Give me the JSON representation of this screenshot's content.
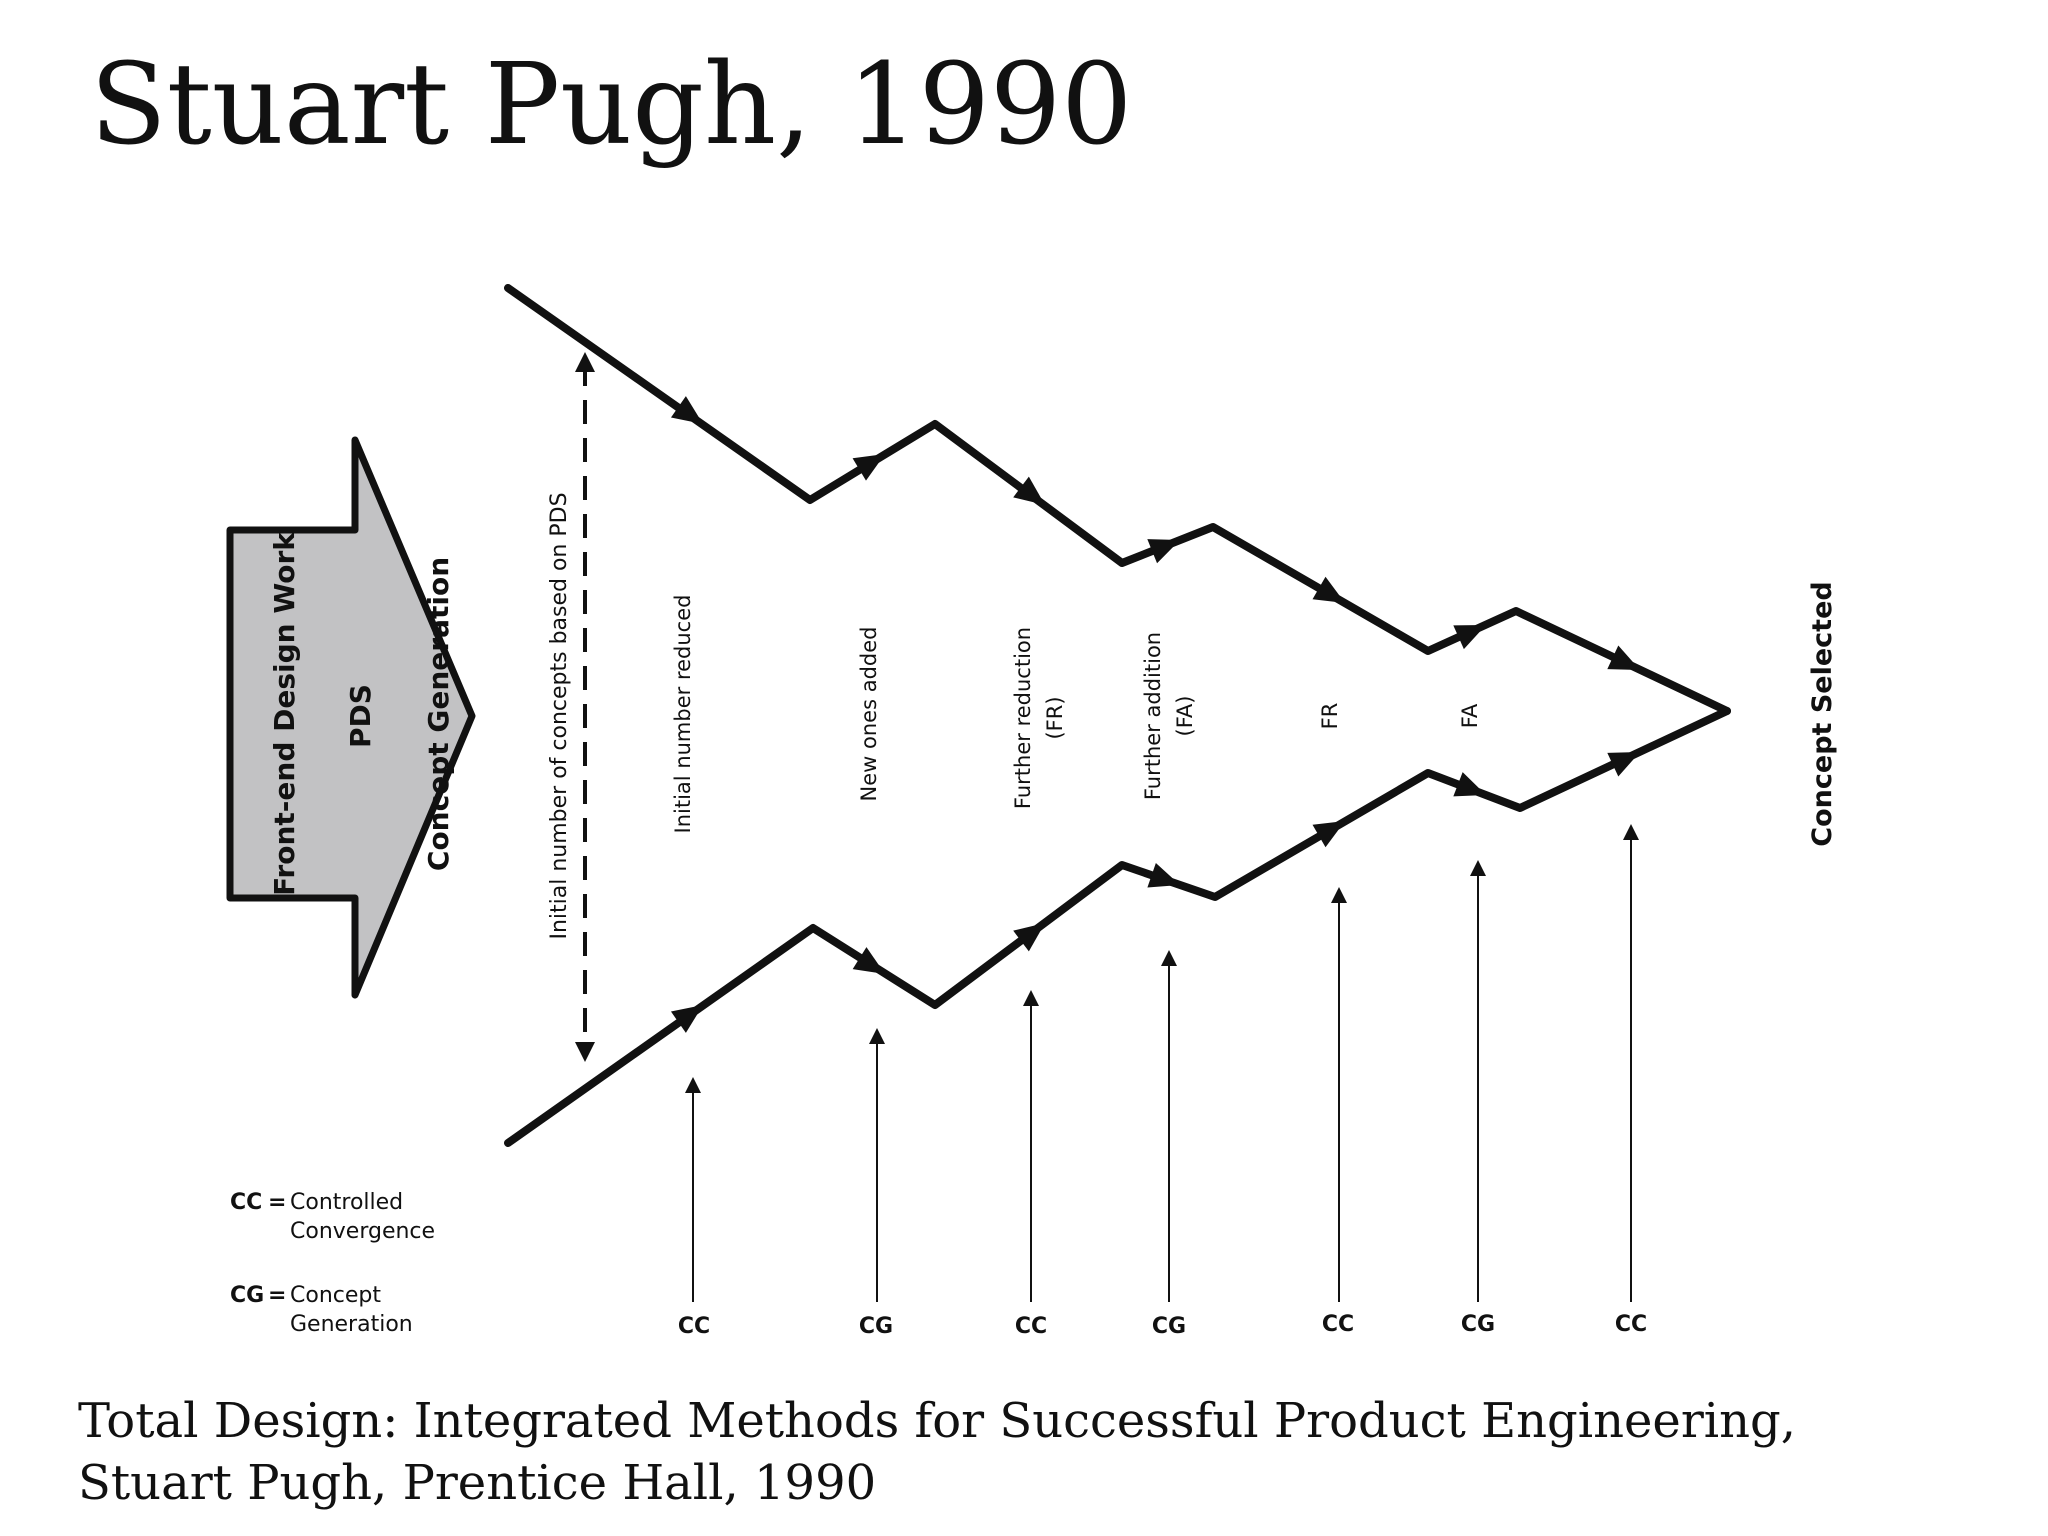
{
  "slide": {
    "title": "Stuart Pugh, 1990",
    "citation_line1": "Total Design: Integrated Methods for Successful Product Engineering,",
    "citation_line2": "Stuart Pugh, Prentice Hall, 1990"
  },
  "input_arrow": {
    "front_end": "Front-end Design Work",
    "pds": "PDS",
    "concept_generation": "Concept Generation",
    "fill_color": "#c2c2c4"
  },
  "initial_label": "Initial number of concepts based on PDS",
  "stage_labels": [
    {
      "line1": "Initial number reduced",
      "line2": ""
    },
    {
      "line1": "New ones added",
      "line2": ""
    },
    {
      "line1": "Further reduction",
      "line2": "(FR)"
    },
    {
      "line1": "Further addition",
      "line2": "(FA)"
    },
    {
      "line1": "FR",
      "line2": ""
    },
    {
      "line1": "FA",
      "line2": ""
    }
  ],
  "concept_selected": "Concept Selected",
  "stage_codes": [
    "CC",
    "CG",
    "CC",
    "CG",
    "CC",
    "CG",
    "CC"
  ],
  "legend": {
    "cc_key": "CC",
    "cc_line1": "Controlled",
    "cc_line2": "Convergence",
    "cg_key": "CG",
    "cg_line1": "Concept",
    "cg_line2": "Generation"
  }
}
